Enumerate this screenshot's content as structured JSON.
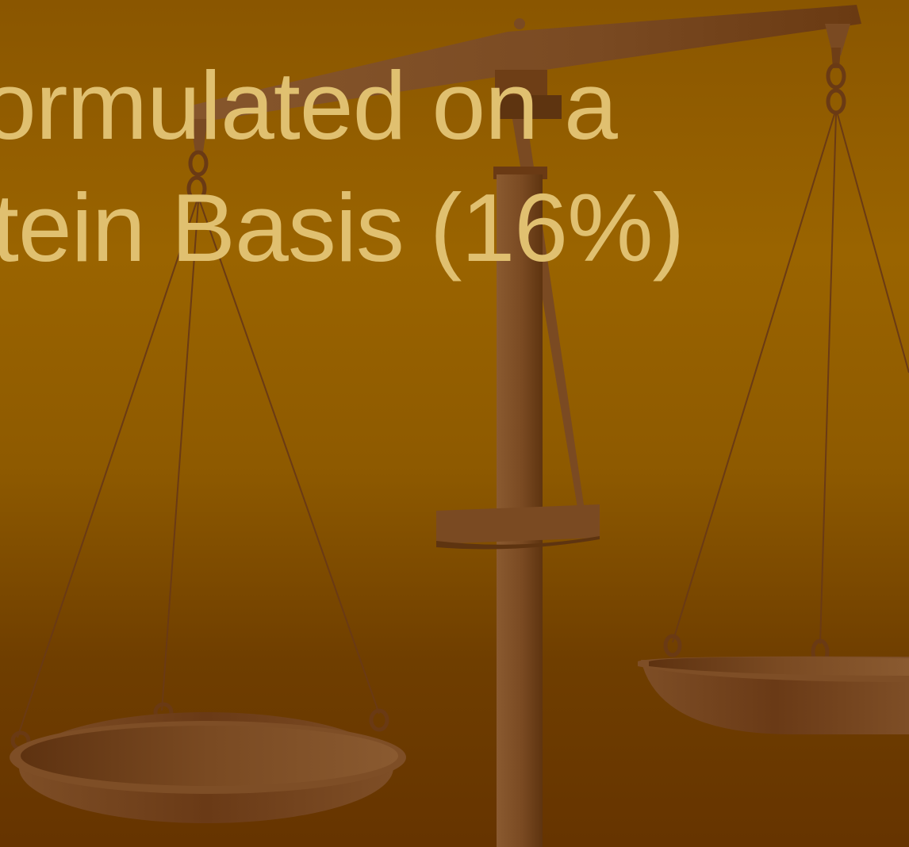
{
  "slide": {
    "title_lines": [
      "ormulated on a",
      "tein Basis (16%)"
    ],
    "background_image": "balance-scale-icon",
    "colors": {
      "background_top": "#8a5600",
      "background_bottom": "#663400",
      "title_text": "#e0c070",
      "wood_light": "#87582f",
      "wood_dark": "#5e3410"
    }
  }
}
